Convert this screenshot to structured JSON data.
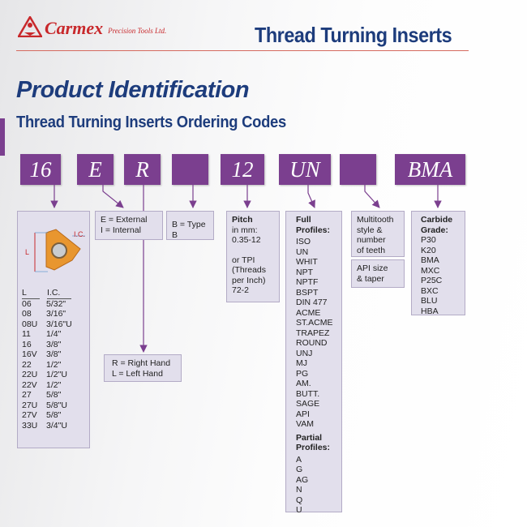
{
  "header": {
    "brand": "Carmex",
    "brand_sub": "Precision Tools Ltd.",
    "title": "Thread Turning Inserts"
  },
  "page_title": "Product Identification",
  "subtitle": "Thread Turning Inserts Ordering Codes",
  "accent_color": "#7b3f8f",
  "codes": [
    "16",
    "E",
    "R",
    "",
    "12",
    "UN",
    "",
    "BMA"
  ],
  "size": {
    "diagram_L": "L",
    "diagram_IC": "I.C.",
    "col_L": "L",
    "col_IC": "I.C.",
    "rows": [
      [
        "06",
        "5/32\""
      ],
      [
        "08",
        "3/16\""
      ],
      [
        "08U",
        "3/16\"U"
      ],
      [
        "11",
        "1/4\""
      ],
      [
        "16",
        "3/8\""
      ],
      [
        "16V",
        "3/8\""
      ],
      [
        "22",
        "1/2\""
      ],
      [
        "22U",
        "1/2\"U"
      ],
      [
        "22V",
        "1/2\""
      ],
      [
        "27",
        "5/8\""
      ],
      [
        "27U",
        "5/8\"U"
      ],
      [
        "27V",
        "5/8\""
      ],
      [
        "33U",
        "3/4\"U"
      ]
    ]
  },
  "type": {
    "external": "E = External",
    "internal": "I = Internal"
  },
  "hand": {
    "right": "R = Right Hand",
    "left": "L = Left Hand"
  },
  "typeb": "B = Type B",
  "pitch": {
    "title": "Pitch",
    "mm_label": "in mm:",
    "mm_range": "0.35-12",
    "tpi_1": "or TPI",
    "tpi_2": "(Threads",
    "tpi_3": "per Inch)",
    "tpi_range": "72-2"
  },
  "profiles": {
    "full_1": "Full",
    "full_2": "Profiles:",
    "full": [
      "ISO",
      "UN",
      "WHIT",
      "NPT",
      "NPTF",
      "BSPT",
      "DIN 477",
      "ACME",
      "ST.ACME",
      "TRAPEZ",
      "ROUND",
      "UNJ",
      "MJ",
      "PG",
      "AM. BUTT.",
      "SAGE",
      "API",
      "VAM"
    ],
    "partial_1": "Partial",
    "partial_2": "Profiles:",
    "partial": [
      "A",
      "G",
      "AG",
      "N",
      "Q",
      "U"
    ]
  },
  "multitooth": [
    "Multitooth",
    "style &",
    "number",
    "of teeth"
  ],
  "api": [
    "API size",
    "& taper"
  ],
  "grade": {
    "title_1": "Carbide",
    "title_2": "Grade:",
    "items": [
      "P30",
      "K20",
      "BMA",
      "MXC",
      "P25C",
      "BXC",
      "BLU",
      "HBA"
    ]
  }
}
